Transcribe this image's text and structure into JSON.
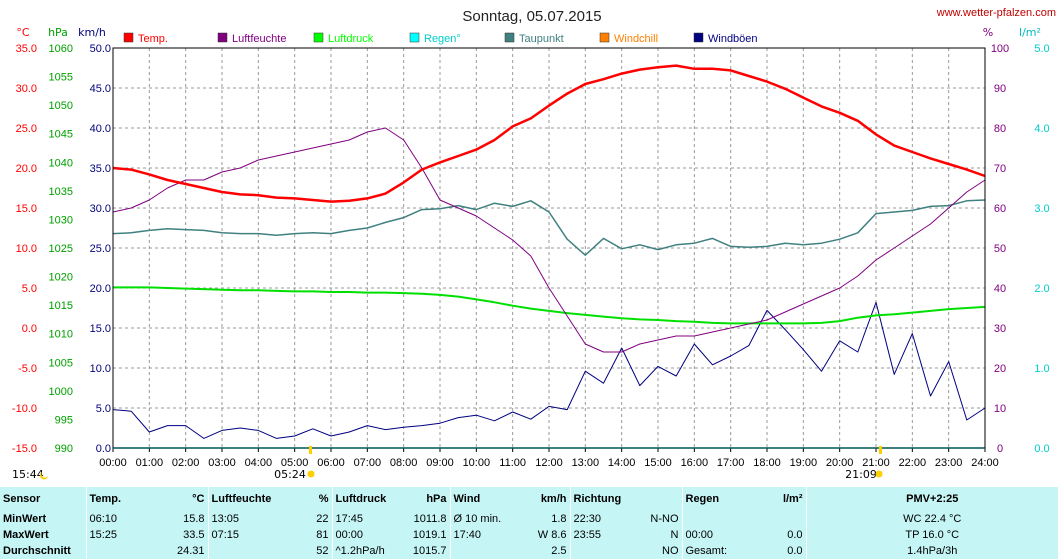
{
  "page": {
    "title": "Sonntag, 05.07.2015",
    "site": "www.wetter-pfalzen.com",
    "markers": {
      "sunrise": "05:24",
      "sunset": "21:09",
      "corner_time": "15:44"
    }
  },
  "chart_data": {
    "type": "line",
    "title": "Sonntag, 05.07.2015",
    "x_hours": [
      0,
      0.5,
      1,
      1.5,
      2,
      2.5,
      3,
      3.5,
      4,
      4.5,
      5,
      5.5,
      6,
      6.5,
      7,
      7.5,
      8,
      8.5,
      9,
      9.5,
      10,
      10.5,
      11,
      11.5,
      12,
      12.5,
      13,
      13.5,
      14,
      14.5,
      15,
      15.5,
      16,
      16.5,
      17,
      17.5,
      18,
      18.5,
      19,
      19.5,
      20,
      20.5,
      21,
      21.5,
      22,
      22.5,
      23,
      23.5,
      24
    ],
    "x_tick_labels": [
      "00:00",
      "01:00",
      "02:00",
      "03:00",
      "04:00",
      "05:00",
      "06:00",
      "07:00",
      "08:00",
      "09:00",
      "10:00",
      "11:00",
      "12:00",
      "13:00",
      "14:00",
      "15:00",
      "16:00",
      "17:00",
      "18:00",
      "19:00",
      "20:00",
      "21:00",
      "22:00",
      "23:00",
      "24:00"
    ],
    "axes": {
      "temp_c": {
        "unit": "°C",
        "color": "#ff0000",
        "min": -15,
        "max": 35,
        "ticks": [
          "35.0",
          "30.0",
          "25.0",
          "20.0",
          "15.0",
          "10.0",
          "5.0",
          "0.0",
          "-5.0",
          "-10.0",
          "-15.0"
        ]
      },
      "pressure": {
        "unit": "hPa",
        "color": "#00b000",
        "min": 990,
        "max": 1060,
        "ticks": [
          "1060",
          "1055",
          "1050",
          "1045",
          "1040",
          "1035",
          "1030",
          "1025",
          "1020",
          "1015",
          "1010",
          "1005",
          "1000",
          "995",
          "990"
        ]
      },
      "wind": {
        "unit": "km/h",
        "color": "#000080",
        "min": 0,
        "max": 50,
        "ticks": [
          "50.0",
          "45.0",
          "40.0",
          "35.0",
          "30.0",
          "25.0",
          "20.0",
          "15.0",
          "10.0",
          "5.0",
          "0.0"
        ]
      },
      "humidity": {
        "unit": "%",
        "color": "#800080",
        "min": 0,
        "max": 100,
        "ticks": [
          "100",
          "90",
          "80",
          "70",
          "60",
          "50",
          "40",
          "30",
          "20",
          "10",
          "0"
        ]
      },
      "rain": {
        "unit": "l/m²",
        "color": "#00cccc",
        "min": 0,
        "max": 5,
        "ticks": [
          "5.0",
          "4.0",
          "3.0",
          "2.0",
          "1.0",
          "0.0"
        ]
      }
    },
    "legend": [
      {
        "label": "Temp.",
        "color": "#ff0000"
      },
      {
        "label": "Luftfeuchte",
        "color": "#800080"
      },
      {
        "label": "Luftdruck",
        "color": "#00ff00"
      },
      {
        "label": "Regen°",
        "color": "#00ffff"
      },
      {
        "label": "Taupunkt",
        "color": "#408080"
      },
      {
        "label": "Windchill",
        "color": "#ff8000"
      },
      {
        "label": "Windböen",
        "color": "#000080"
      }
    ],
    "series": [
      {
        "name": "Temp.",
        "axis": "temp_c",
        "color": "#ff0000",
        "values": [
          20.0,
          19.8,
          19.2,
          18.5,
          18.0,
          17.5,
          17.0,
          16.7,
          16.6,
          16.3,
          16.2,
          16.0,
          15.8,
          15.9,
          16.2,
          16.8,
          18.2,
          19.8,
          20.7,
          21.5,
          22.3,
          23.5,
          25.2,
          26.2,
          27.8,
          29.3,
          30.5,
          31.1,
          31.8,
          32.3,
          32.6,
          32.8,
          32.4,
          32.4,
          32.2,
          31.5,
          30.8,
          29.9,
          28.8,
          27.7,
          26.9,
          25.9,
          24.2,
          22.8,
          22.0,
          21.2,
          20.5,
          19.8,
          19.0
        ]
      },
      {
        "name": "Luftfeuchte",
        "axis": "humidity",
        "color": "#800080",
        "values": [
          59,
          60,
          62,
          65,
          67,
          67,
          69,
          70,
          72,
          73,
          74,
          75,
          76,
          77,
          79,
          80,
          77,
          70,
          62,
          60,
          58,
          55,
          52,
          48,
          40,
          33,
          26,
          24,
          24,
          26,
          27,
          28,
          28,
          29,
          30,
          31,
          32,
          34,
          36,
          38,
          40,
          43,
          47,
          50,
          53,
          56,
          60,
          64,
          67
        ]
      },
      {
        "name": "Luftdruck",
        "axis": "pressure",
        "color": "#00e000",
        "values": [
          1018.1,
          1018.1,
          1018.1,
          1018.0,
          1017.9,
          1017.8,
          1017.7,
          1017.6,
          1017.6,
          1017.5,
          1017.4,
          1017.4,
          1017.3,
          1017.3,
          1017.2,
          1017.2,
          1017.1,
          1017.0,
          1016.8,
          1016.5,
          1016.0,
          1015.5,
          1014.9,
          1014.4,
          1014.0,
          1013.6,
          1013.3,
          1013.0,
          1012.7,
          1012.5,
          1012.4,
          1012.2,
          1012.1,
          1011.9,
          1011.8,
          1011.8,
          1011.8,
          1011.8,
          1011.8,
          1011.9,
          1012.2,
          1012.8,
          1013.2,
          1013.4,
          1013.7,
          1014.0,
          1014.3,
          1014.5,
          1014.7
        ]
      },
      {
        "name": "Taupunkt",
        "axis": "temp_c",
        "color": "#408080",
        "values": [
          11.8,
          11.9,
          12.2,
          12.4,
          12.3,
          12.2,
          11.9,
          11.8,
          11.8,
          11.6,
          11.8,
          11.9,
          11.8,
          12.2,
          12.5,
          13.2,
          13.8,
          14.8,
          14.9,
          15.3,
          14.8,
          15.6,
          15.2,
          15.9,
          14.5,
          11.1,
          9.1,
          11.2,
          9.9,
          10.4,
          9.8,
          10.4,
          10.6,
          11.2,
          10.2,
          10.1,
          10.2,
          10.6,
          10.4,
          10.6,
          11.1,
          11.9,
          14.3,
          14.5,
          14.7,
          15.2,
          15.3,
          15.9,
          16.0
        ]
      },
      {
        "name": "Regen°",
        "axis": "rain",
        "color": "#00ffff",
        "values": [
          0,
          0,
          0,
          0,
          0,
          0,
          0,
          0,
          0,
          0,
          0,
          0,
          0,
          0,
          0,
          0,
          0,
          0,
          0,
          0,
          0,
          0,
          0,
          0,
          0,
          0,
          0,
          0,
          0,
          0,
          0,
          0,
          0,
          0,
          0,
          0,
          0,
          0,
          0,
          0,
          0,
          0,
          0,
          0,
          0,
          0,
          0,
          0,
          0
        ]
      },
      {
        "name": "Windböen",
        "axis": "wind",
        "color": "#000080",
        "values": [
          4.8,
          4.6,
          2.0,
          2.8,
          2.8,
          1.2,
          2.2,
          2.5,
          2.2,
          1.2,
          1.5,
          2.4,
          1.5,
          2.0,
          2.8,
          2.3,
          2.6,
          2.8,
          3.1,
          3.8,
          4.1,
          3.4,
          4.5,
          3.6,
          5.2,
          4.8,
          9.6,
          8.1,
          12.5,
          7.8,
          10.2,
          9.0,
          13.0,
          10.4,
          11.5,
          12.8,
          17.2,
          14.8,
          12.3,
          9.6,
          13.4,
          12.0,
          18.2,
          9.2,
          14.3,
          6.5,
          10.8,
          3.5,
          5.0
        ]
      }
    ]
  },
  "stats": {
    "headers": [
      "Sensor",
      "Temp.",
      "°C",
      "Luftfeuchte",
      "%",
      "Luftdruck",
      "hPa",
      "Wind",
      "km/h",
      "Richtung",
      "",
      "Regen",
      "l/m²",
      "PMV+2:25"
    ],
    "rows": [
      [
        "MinWert",
        "06:10",
        "15.8",
        "13:05",
        "22",
        "17:45",
        "1011.8",
        "Ø 10 min.",
        "1.8",
        "22:30",
        "N-NO",
        "",
        "",
        "WC 22.4 °C"
      ],
      [
        "MaxWert",
        "15:25",
        "33.5",
        "07:15",
        "81",
        "00:00",
        "1019.1",
        "17:40",
        "W 8.6",
        "23:55",
        "N",
        "00:00",
        "0.0",
        "TP 16.0 °C"
      ],
      [
        "Durchschnitt",
        "",
        "24.31",
        "",
        "52",
        "^1.2hPa/h",
        "1015.7",
        "",
        "2.5",
        "",
        "NO",
        "Gesamt:",
        "0.0",
        "1.4hPa/3h"
      ]
    ]
  }
}
